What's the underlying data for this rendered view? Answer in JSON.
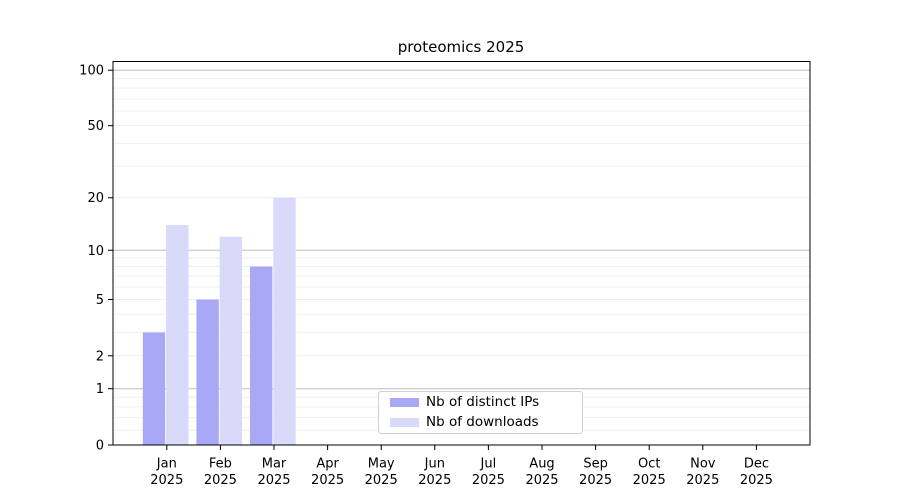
{
  "title": "proteomics 2025",
  "colors": {
    "background": "#ffffff",
    "axis": "#000000",
    "text": "#000000",
    "grid_major": "#bdbdbd",
    "grid_minor": "#efefef",
    "bar_distinct_ips": "#a8a8f6",
    "bar_downloads": "#d9d9f9",
    "legend_border": "#d0d0d0"
  },
  "chart_data": {
    "type": "bar",
    "title": "proteomics 2025",
    "categories": [
      "Jan 2025",
      "Feb 2025",
      "Mar 2025",
      "Apr 2025",
      "May 2025",
      "Jun 2025",
      "Jul 2025",
      "Aug 2025",
      "Sep 2025",
      "Oct 2025",
      "Nov 2025",
      "Dec 2025"
    ],
    "series": [
      {
        "name": "Nb of distinct IPs",
        "color": "#a8a8f6",
        "values": [
          3,
          5,
          8,
          0,
          0,
          0,
          0,
          0,
          0,
          0,
          0,
          0
        ]
      },
      {
        "name": "Nb of downloads",
        "color": "#d9d9f9",
        "values": [
          14,
          12,
          20,
          0,
          0,
          0,
          0,
          0,
          0,
          0,
          0,
          0
        ]
      }
    ],
    "xlabel": "",
    "ylabel": "",
    "yscale": "log1p",
    "ylim": [
      0,
      112
    ],
    "yticks": [
      0,
      1,
      2,
      5,
      10,
      20,
      50,
      100
    ],
    "grid": true,
    "grid_values_major": [
      1,
      10,
      100
    ],
    "grid_values_minor": [
      0.2,
      0.4,
      0.6,
      0.8,
      2,
      3,
      4,
      5,
      6,
      7,
      8,
      9,
      20,
      30,
      40,
      50,
      60,
      70,
      80,
      90
    ],
    "legend_position": "bottom-center",
    "legend_items": [
      "Nb of distinct IPs",
      "Nb of downloads"
    ]
  }
}
